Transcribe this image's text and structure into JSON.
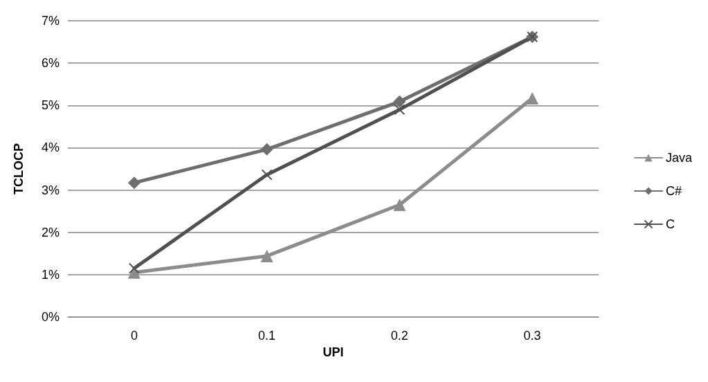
{
  "chart_data": {
    "type": "line",
    "xlabel": "UPI",
    "ylabel": "TCLOCP",
    "categories": [
      "0",
      "0.1",
      "0.2",
      "0.3"
    ],
    "series": [
      {
        "name": "Java",
        "color": "#8c8c8c",
        "marker": "triangle",
        "values": [
          1.05,
          1.44,
          2.65,
          5.17
        ]
      },
      {
        "name": "C#",
        "color": "#6e6e6e",
        "marker": "diamond",
        "values": [
          3.17,
          3.96,
          5.09,
          6.62
        ]
      },
      {
        "name": "C",
        "color": "#505050",
        "marker": "cross",
        "values": [
          1.15,
          3.36,
          4.9,
          6.62
        ]
      }
    ],
    "ylim": [
      0,
      7
    ],
    "yticks": [
      {
        "value": 0,
        "label": "0%"
      },
      {
        "value": 1,
        "label": "1%"
      },
      {
        "value": 2,
        "label": "2%"
      },
      {
        "value": 3,
        "label": "3%"
      },
      {
        "value": 4,
        "label": "4%"
      },
      {
        "value": 5,
        "label": "5%"
      },
      {
        "value": 6,
        "label": "6%"
      },
      {
        "value": 7,
        "label": "7%"
      }
    ],
    "grid": "y",
    "legend": "right",
    "line_style": "solid"
  }
}
